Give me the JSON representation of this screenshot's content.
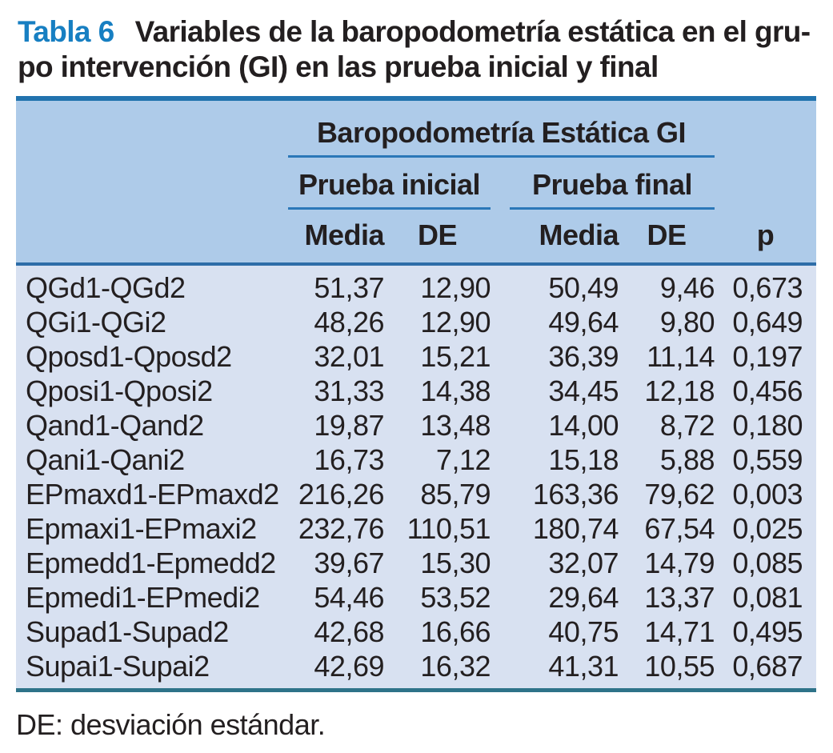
{
  "title": {
    "badge": "Tabla 6",
    "line1": "Variables de la baropodometría estática en el gru-",
    "line2": "po intervención (GI) en las prueba inicial y final"
  },
  "table": {
    "group_header": "Baropodometría Estática GI",
    "subgroups": [
      "Prueba inicial",
      "Prueba final"
    ],
    "columns": [
      "Media",
      "DE",
      "Media",
      "DE",
      "p"
    ],
    "rows": [
      [
        "QGd1-QGd2",
        "51,37",
        "12,90",
        "50,49",
        "9,46",
        "0,673"
      ],
      [
        "QGi1-QGi2",
        "48,26",
        "12,90",
        "49,64",
        "9,80",
        "0,649"
      ],
      [
        "Qposd1-Qposd2",
        "32,01",
        "15,21",
        "36,39",
        "11,14",
        "0,197"
      ],
      [
        "Qposi1-Qposi2",
        "31,33",
        "14,38",
        "34,45",
        "12,18",
        "0,456"
      ],
      [
        "Qand1-Qand2",
        "19,87",
        "13,48",
        "14,00",
        "8,72",
        "0,180"
      ],
      [
        "Qani1-Qani2",
        "16,73",
        "7,12",
        "15,18",
        "5,88",
        "0,559"
      ],
      [
        "EPmaxd1-EPmaxd2",
        "216,26",
        "85,79",
        "163,36",
        "79,62",
        "0,003"
      ],
      [
        "Epmaxi1-EPmaxi2",
        "232,76",
        "110,51",
        "180,74",
        "67,54",
        "0,025"
      ],
      [
        "Epmedd1-Epmedd2",
        "39,67",
        "15,30",
        "32,07",
        "14,79",
        "0,085"
      ],
      [
        "Epmedi1-EPmedi2",
        "54,46",
        "53,52",
        "29,64",
        "13,37",
        "0,081"
      ],
      [
        "Supad1-Supad2",
        "42,68",
        "16,66",
        "40,75",
        "14,71",
        "0,495"
      ],
      [
        "Supai1-Supai2",
        "42,69",
        "16,32",
        "41,31",
        "10,55",
        "0,687"
      ]
    ]
  },
  "footnote": "DE: desviación estándar.",
  "colors": {
    "accent_blue": "#177fc2",
    "header_bg": "#aecbe9",
    "body_bg": "#d8e1f1",
    "top_border": "#2173ae",
    "rule_blue": "#2b77b8",
    "separator_blue": "#2d6da8",
    "bottom_border_teal": "#2e7389",
    "text": "#231f20"
  }
}
